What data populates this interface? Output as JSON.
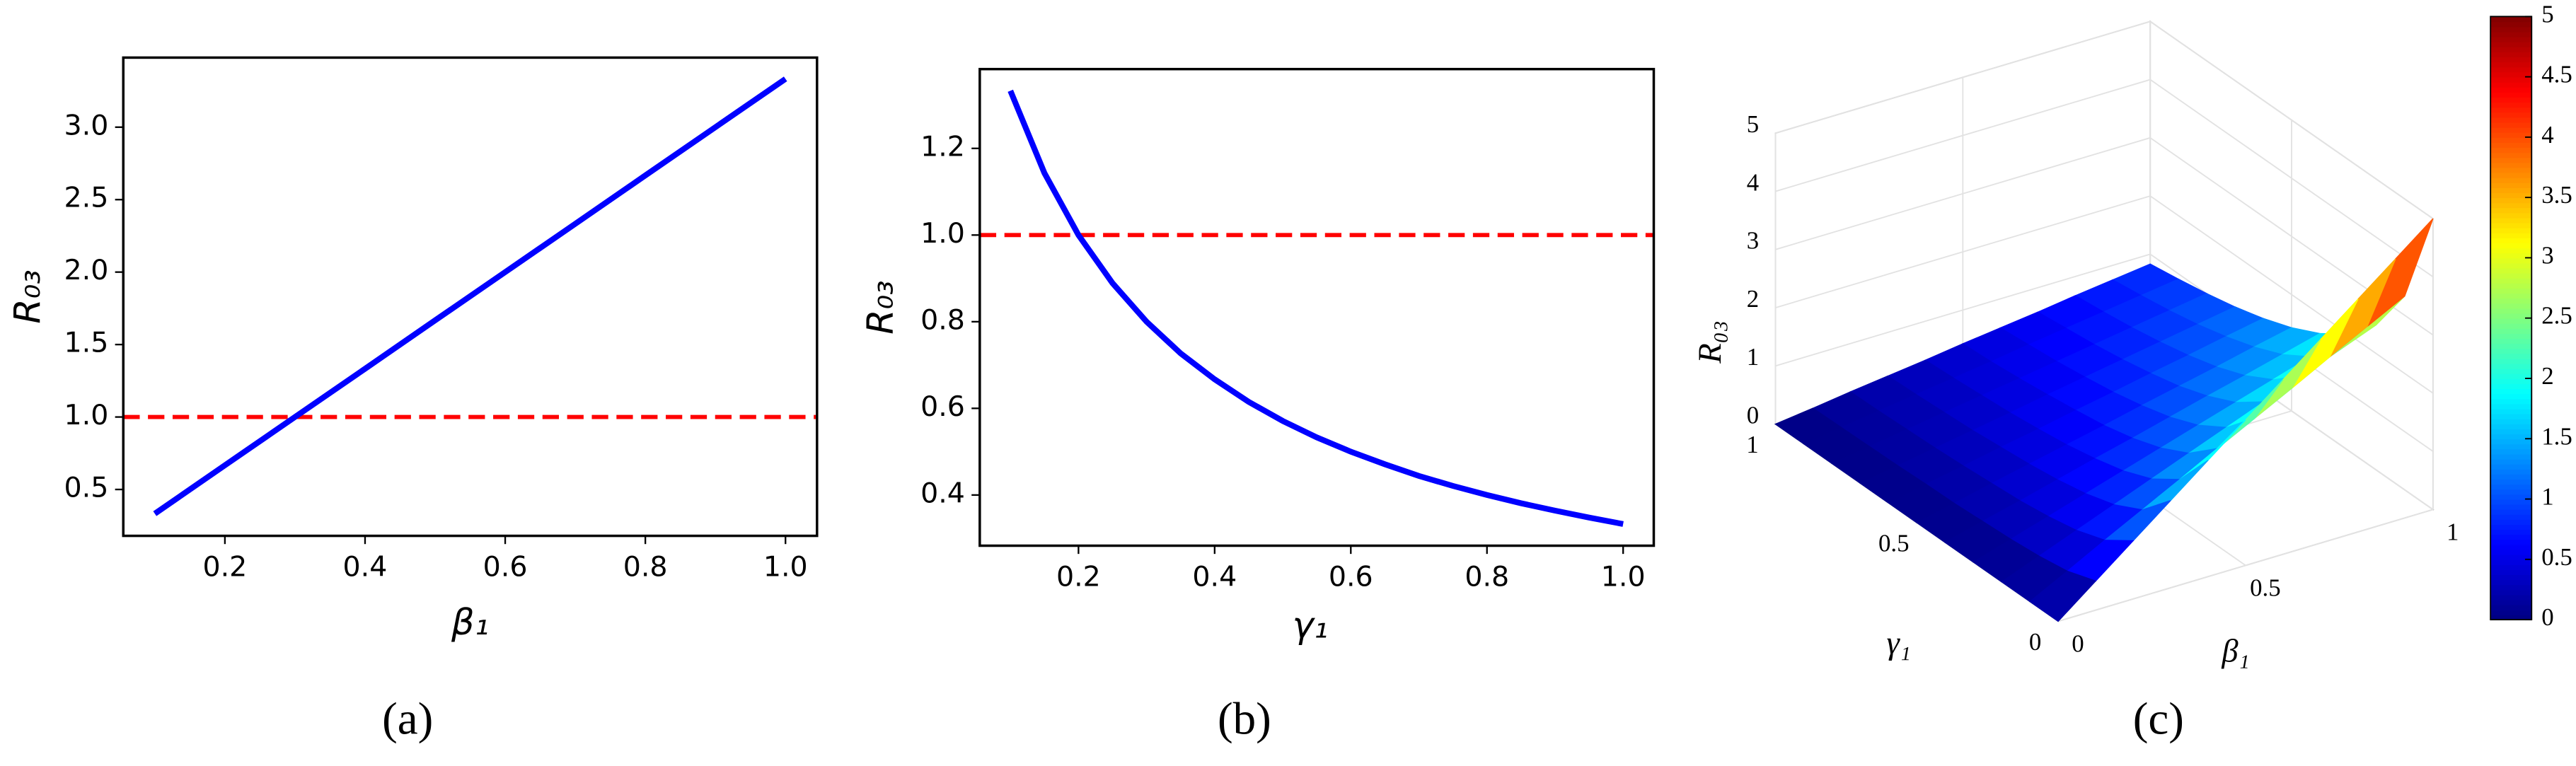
{
  "chart_data": [
    {
      "type": "line",
      "panel_label": "(a)",
      "xlabel": "β₁",
      "ylabel": "R₀₃",
      "x": [
        0.1,
        0.2,
        0.3,
        0.4,
        0.5,
        0.6,
        0.7,
        0.8,
        0.9,
        1.0
      ],
      "values": [
        0.333,
        0.667,
        1.0,
        1.333,
        1.667,
        2.0,
        2.333,
        2.667,
        3.0,
        3.333
      ],
      "color": "#0000ff",
      "reference_line": {
        "value": 1,
        "color": "#ff0000"
      },
      "xlim": [
        0.055,
        1.045
      ],
      "ylim": [
        0.18,
        3.48
      ],
      "xticks": [
        0.2,
        0.4,
        0.6,
        0.8,
        {
          "value": 1,
          "label": "1.0"
        }
      ],
      "yticks": [
        0.5,
        {
          "value": 1,
          "label": "1.0"
        },
        1.5,
        {
          "value": 2,
          "label": "2.0"
        },
        2.5,
        {
          "value": 3,
          "label": "3.0"
        }
      ]
    },
    {
      "type": "line",
      "panel_label": "(b)",
      "xlabel": "γ₁",
      "ylabel": "R₀₃",
      "x": [
        0.1,
        0.15,
        0.2,
        0.25,
        0.3,
        0.35,
        0.4,
        0.45,
        0.5,
        0.55,
        0.6,
        0.65,
        0.7,
        0.75,
        0.8,
        0.85,
        0.9,
        0.95,
        1.0
      ],
      "values": [
        1.333,
        1.143,
        1.0,
        0.889,
        0.8,
        0.727,
        0.667,
        0.615,
        0.571,
        0.533,
        0.5,
        0.471,
        0.444,
        0.421,
        0.4,
        0.381,
        0.364,
        0.348,
        0.333
      ],
      "color": "#0000ff",
      "reference_line": {
        "value": 1,
        "color": "#ff0000"
      },
      "xlim": [
        0.055,
        1.045
      ],
      "ylim": [
        0.283,
        1.383
      ],
      "xticks": [
        0.2,
        0.4,
        0.6,
        0.8,
        {
          "value": 1,
          "label": "1.0"
        }
      ],
      "yticks": [
        0.4,
        0.6,
        0.8,
        {
          "value": 1,
          "label": "1.0"
        },
        1.2
      ]
    },
    {
      "type": "surface",
      "panel_label": "(c)",
      "xlabel": "β₁",
      "ylabel": "γ₁",
      "zlabel": "R₀₃",
      "x": [
        0,
        0.1,
        0.2,
        0.3,
        0.4,
        0.5,
        0.6,
        0.7,
        0.8,
        0.9,
        1
      ],
      "y": [
        0,
        0.1,
        0.2,
        0.3,
        0.4,
        0.5,
        0.6,
        0.7,
        0.8,
        0.9,
        1
      ],
      "z": [
        [
          0,
          0.5,
          1,
          1.5,
          2,
          2.5,
          3,
          3.5,
          4,
          4.5,
          5
        ],
        [
          0,
          0.33,
          0.67,
          1,
          1.33,
          1.67,
          2,
          2.33,
          2.67,
          3,
          3.33
        ],
        [
          0,
          0.25,
          0.5,
          0.75,
          1,
          1.25,
          1.5,
          1.75,
          2,
          2.25,
          2.5
        ],
        [
          0,
          0.2,
          0.4,
          0.6,
          0.8,
          1,
          1.2,
          1.4,
          1.6,
          1.8,
          2
        ],
        [
          0,
          0.17,
          0.33,
          0.5,
          0.67,
          0.83,
          1,
          1.17,
          1.33,
          1.5,
          1.67
        ],
        [
          0,
          0.14,
          0.29,
          0.43,
          0.57,
          0.71,
          0.86,
          1,
          1.14,
          1.29,
          1.43
        ],
        [
          0,
          0.13,
          0.25,
          0.38,
          0.5,
          0.63,
          0.75,
          0.88,
          1,
          1.13,
          1.25
        ],
        [
          0,
          0.11,
          0.22,
          0.33,
          0.44,
          0.56,
          0.67,
          0.78,
          0.89,
          1,
          1.11
        ],
        [
          0,
          0.1,
          0.2,
          0.3,
          0.4,
          0.5,
          0.6,
          0.7,
          0.8,
          0.9,
          1
        ],
        [
          0,
          0.09,
          0.18,
          0.27,
          0.36,
          0.45,
          0.55,
          0.64,
          0.73,
          0.82,
          0.91
        ],
        [
          0,
          0.08,
          0.17,
          0.25,
          0.33,
          0.42,
          0.5,
          0.58,
          0.67,
          0.75,
          0.83
        ]
      ],
      "colormap": "jet",
      "xlim": [
        0,
        1
      ],
      "ylim": [
        0,
        1
      ],
      "zlim": [
        0,
        5
      ],
      "clim": [
        0,
        5
      ],
      "xticks": [
        0,
        0.5,
        1
      ],
      "yticks": [
        0,
        0.5,
        1
      ],
      "zticks": [
        0,
        1,
        2,
        3,
        4,
        5
      ],
      "cticks": [
        0,
        0.5,
        1,
        1.5,
        2,
        2.5,
        3,
        3.5,
        4,
        4.5,
        5
      ]
    }
  ]
}
